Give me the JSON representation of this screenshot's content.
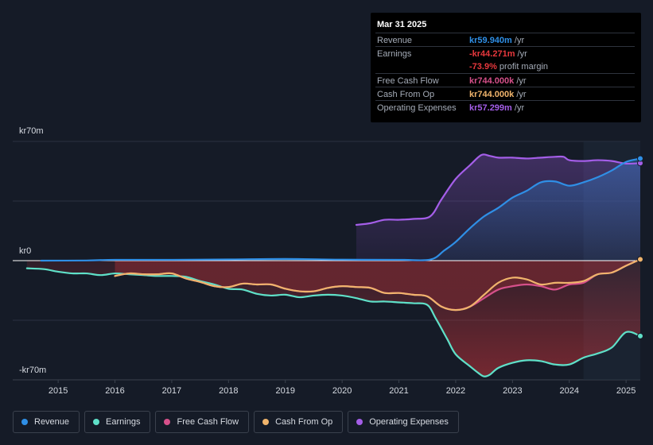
{
  "tooltip": {
    "date": "Mar 31 2025",
    "rows": [
      {
        "label": "Revenue",
        "value": "kr59.940m",
        "suffix": " /yr",
        "color": "#2f8fe6"
      },
      {
        "label": "Earnings",
        "value": "-kr44.271m",
        "suffix": " /yr",
        "color": "#e8383d"
      },
      {
        "label": "",
        "value": "-73.9%",
        "suffix": " profit margin",
        "color": "#e8383d"
      },
      {
        "label": "Free Cash Flow",
        "value": "kr744.000k",
        "suffix": " /yr",
        "color": "#d6508a"
      },
      {
        "label": "Cash From Op",
        "value": "kr744.000k",
        "suffix": " /yr",
        "color": "#f0b46c"
      },
      {
        "label": "Operating Expenses",
        "value": "kr57.299m",
        "suffix": " /yr",
        "color": "#a45ee8"
      }
    ]
  },
  "legend": [
    {
      "label": "Revenue",
      "color": "#2f8fe6"
    },
    {
      "label": "Earnings",
      "color": "#5fe0c8"
    },
    {
      "label": "Free Cash Flow",
      "color": "#d6508a"
    },
    {
      "label": "Cash From Op",
      "color": "#f0b46c"
    },
    {
      "label": "Operating Expenses",
      "color": "#a45ee8"
    }
  ],
  "chart_data": {
    "type": "line",
    "title": "",
    "xlabel": "",
    "ylabel": "",
    "ylim": [
      -70,
      70
    ],
    "y_unit": "kr m",
    "y_tick_labels": [
      {
        "value": 70,
        "label": "kr70m"
      },
      {
        "value": 0,
        "label": "kr0"
      },
      {
        "value": -70,
        "label": "-kr70m"
      }
    ],
    "xlim": [
      2014.2,
      2025.25
    ],
    "x_ticks": [
      2015,
      2016,
      2017,
      2018,
      2019,
      2020,
      2021,
      2022,
      2023,
      2024,
      2025
    ],
    "x_tick_labels": [
      "2015",
      "2016",
      "2017",
      "2018",
      "2019",
      "2020",
      "2021",
      "2022",
      "2023",
      "2024",
      "2025"
    ],
    "highlight_start": 2024.25,
    "series": [
      {
        "name": "Revenue",
        "color": "#2f8fe6",
        "fill": true,
        "x": [
          2014.7,
          2015.5,
          2016.0,
          2017.0,
          2018.0,
          2019.0,
          2020.0,
          2021.0,
          2021.55,
          2021.8,
          2022.0,
          2022.25,
          2022.5,
          2022.75,
          2023.0,
          2023.25,
          2023.5,
          2023.75,
          2024.0,
          2024.25,
          2024.5,
          2024.75,
          2025.0,
          2025.25
        ],
        "values": [
          0.0,
          0.1,
          0.5,
          0.5,
          0.7,
          1.0,
          0.6,
          0.5,
          0.6,
          6,
          11,
          19,
          26,
          31,
          37,
          41,
          46,
          46.5,
          44,
          46,
          49,
          53,
          58,
          59.94
        ]
      },
      {
        "name": "Earnings",
        "color": "#5fe0c8",
        "fill": true,
        "x": [
          2014.45,
          2014.75,
          2015.0,
          2015.25,
          2015.5,
          2015.75,
          2016.0,
          2016.25,
          2016.5,
          2016.75,
          2017.0,
          2017.25,
          2017.5,
          2017.75,
          2018.0,
          2018.25,
          2018.5,
          2018.75,
          2019.0,
          2019.25,
          2019.5,
          2019.75,
          2020.0,
          2020.25,
          2020.5,
          2020.75,
          2021.0,
          2021.25,
          2021.5,
          2021.65,
          2021.85,
          2022.0,
          2022.25,
          2022.4,
          2022.5,
          2022.6,
          2022.75,
          2023.0,
          2023.25,
          2023.5,
          2023.75,
          2024.0,
          2024.25,
          2024.5,
          2024.75,
          2025.0,
          2025.25
        ],
        "values": [
          -4.5,
          -5,
          -6.5,
          -7.5,
          -7.5,
          -8.5,
          -7.5,
          -8,
          -8.5,
          -9,
          -9,
          -9.5,
          -12,
          -14,
          -16.5,
          -17,
          -19.5,
          -20.5,
          -20,
          -21.5,
          -20.5,
          -20,
          -20.5,
          -22,
          -24,
          -24,
          -24.5,
          -25,
          -26,
          -34,
          -46,
          -55,
          -62,
          -66,
          -68,
          -67,
          -63,
          -60,
          -58.5,
          -59,
          -61,
          -61,
          -57,
          -54.5,
          -51,
          -42,
          -44.271
        ]
      },
      {
        "name": "Free Cash Flow",
        "color": "#d6508a",
        "fill": true,
        "x": [
          2016.0,
          2016.25,
          2016.5,
          2016.75,
          2017.0,
          2017.25,
          2017.5,
          2017.75,
          2018.0,
          2018.25,
          2018.5,
          2018.75,
          2019.0,
          2019.25,
          2019.5,
          2019.75,
          2020.0,
          2020.25,
          2020.5,
          2020.75,
          2021.0,
          2021.25,
          2021.5,
          2021.75,
          2022.0,
          2022.25,
          2022.5,
          2022.75,
          2023.0,
          2023.25,
          2023.5,
          2023.75,
          2024.0,
          2024.25,
          2024.5,
          2024.75,
          2025.0,
          2025.25
        ],
        "values": [
          -9,
          -7.5,
          -8,
          -8,
          -7.5,
          -10.5,
          -12.5,
          -15,
          -15.5,
          -13.5,
          -14,
          -14,
          -16.5,
          -18,
          -18,
          -16,
          -15,
          -15.5,
          -16,
          -19,
          -19,
          -20,
          -21,
          -27,
          -29,
          -27,
          -22,
          -17,
          -15,
          -14,
          -15,
          -17,
          -14,
          -13,
          -8,
          -7,
          -3,
          0.744
        ]
      },
      {
        "name": "Cash From Op",
        "color": "#f0b46c",
        "fill": false,
        "x": [
          2016.0,
          2016.25,
          2016.5,
          2016.75,
          2017.0,
          2017.25,
          2017.5,
          2017.75,
          2018.0,
          2018.25,
          2018.5,
          2018.75,
          2019.0,
          2019.25,
          2019.5,
          2019.75,
          2020.0,
          2020.25,
          2020.5,
          2020.75,
          2021.0,
          2021.25,
          2021.5,
          2021.75,
          2022.0,
          2022.25,
          2022.5,
          2022.75,
          2023.0,
          2023.25,
          2023.5,
          2023.75,
          2024.0,
          2024.25,
          2024.5,
          2024.75,
          2025.0,
          2025.25
        ],
        "values": [
          -9,
          -7.5,
          -8,
          -8,
          -7.5,
          -10.5,
          -12.5,
          -15,
          -15.5,
          -13.5,
          -14,
          -14,
          -16.5,
          -18,
          -18,
          -16,
          -15,
          -15.5,
          -16,
          -19,
          -19,
          -20,
          -21,
          -27,
          -29,
          -27,
          -20,
          -13,
          -10,
          -11,
          -14,
          -13,
          -13,
          -12,
          -8,
          -7,
          -3,
          0.744
        ]
      },
      {
        "name": "Operating Expenses",
        "color": "#a45ee8",
        "fill": true,
        "x": [
          2020.25,
          2020.5,
          2020.75,
          2021.0,
          2021.25,
          2021.55,
          2021.75,
          2022.0,
          2022.25,
          2022.45,
          2022.6,
          2022.75,
          2023.0,
          2023.25,
          2023.5,
          2023.75,
          2023.9,
          2024.0,
          2024.25,
          2024.5,
          2024.75,
          2025.0,
          2025.25
        ],
        "values": [
          21,
          22,
          24,
          24,
          24.5,
          26,
          36,
          48,
          56,
          62,
          61.5,
          60.5,
          60.5,
          60,
          60.5,
          61,
          61,
          59,
          58.5,
          59,
          58.5,
          57,
          57.299
        ]
      }
    ]
  }
}
